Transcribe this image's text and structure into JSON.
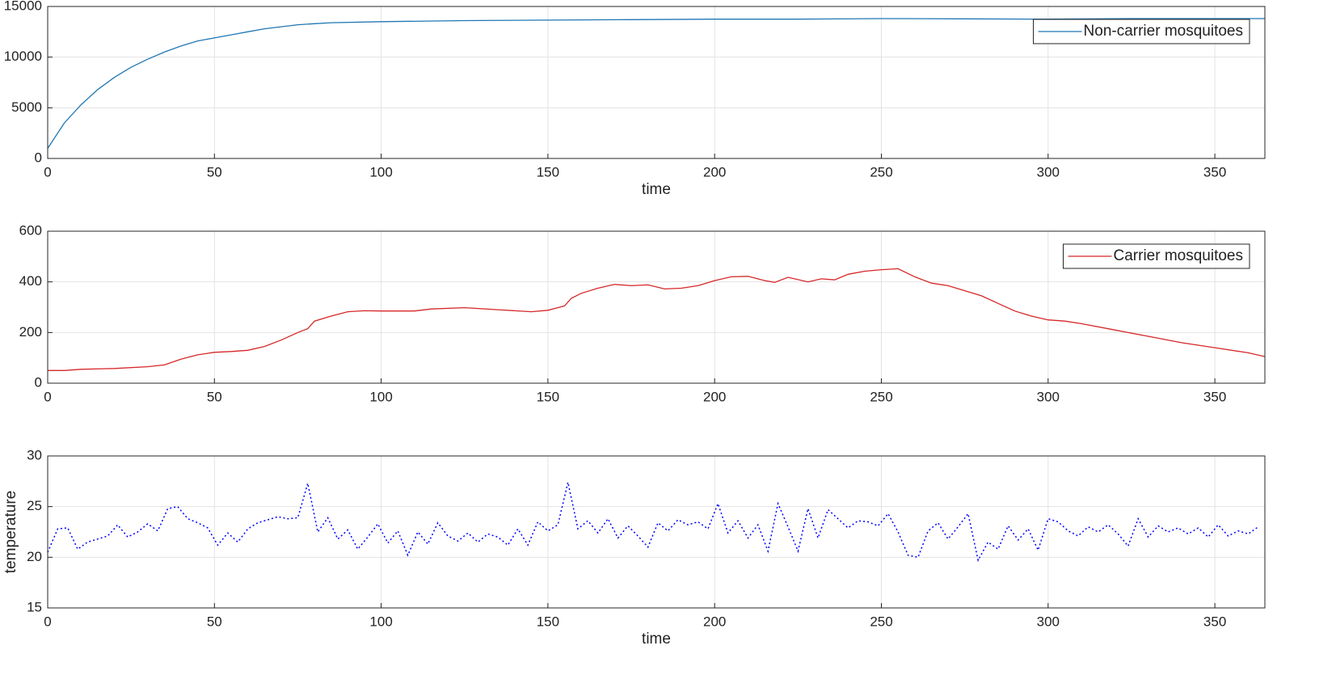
{
  "chart_data": [
    {
      "type": "line",
      "xlabel": "time",
      "x": [
        0,
        5,
        10,
        15,
        20,
        25,
        30,
        35,
        40,
        45,
        50,
        55,
        60,
        65,
        70,
        75,
        80,
        85,
        100,
        125,
        150,
        175,
        200,
        225,
        250,
        275,
        300,
        325,
        350,
        365
      ],
      "series": [
        {
          "name": "Non-carrier mosquitoes",
          "color": "#1f77b4",
          "line_style": "solid",
          "values": [
            1000,
            3500,
            5300,
            6800,
            8000,
            9000,
            9800,
            10500,
            11100,
            11600,
            11900,
            12200,
            12500,
            12800,
            13000,
            13200,
            13300,
            13400,
            13500,
            13600,
            13650,
            13700,
            13750,
            13750,
            13800,
            13780,
            13750,
            13800,
            13800,
            13800
          ]
        }
      ],
      "xlim": [
        0,
        365
      ],
      "xticks": [
        0,
        50,
        100,
        150,
        200,
        250,
        300,
        350
      ],
      "ylim": [
        0,
        15000
      ],
      "yticks": [
        0,
        5000,
        10000,
        15000
      ],
      "grid": true,
      "legend": "northeast"
    },
    {
      "type": "line",
      "x": [
        0,
        5,
        10,
        20,
        30,
        35,
        40,
        45,
        50,
        55,
        60,
        65,
        70,
        75,
        78,
        80,
        85,
        90,
        95,
        100,
        110,
        115,
        125,
        135,
        145,
        150,
        155,
        157,
        160,
        165,
        170,
        175,
        180,
        185,
        190,
        195,
        200,
        205,
        210,
        215,
        218,
        222,
        228,
        232,
        236,
        240,
        245,
        250,
        255,
        260,
        265,
        270,
        275,
        280,
        285,
        290,
        295,
        300,
        305,
        310,
        320,
        330,
        340,
        350,
        360,
        365
      ],
      "series": [
        {
          "name": "Carrier mosquitoes",
          "color": "#d62728",
          "line_style": "solid",
          "values": [
            50,
            50,
            55,
            58,
            65,
            72,
            95,
            112,
            122,
            125,
            130,
            145,
            170,
            200,
            215,
            245,
            265,
            282,
            286,
            285,
            285,
            293,
            298,
            290,
            282,
            288,
            305,
            335,
            355,
            375,
            390,
            385,
            388,
            372,
            375,
            385,
            405,
            420,
            422,
            405,
            398,
            418,
            400,
            412,
            408,
            430,
            442,
            448,
            452,
            420,
            395,
            385,
            365,
            345,
            315,
            285,
            265,
            250,
            245,
            235,
            210,
            185,
            160,
            140,
            120,
            105
          ]
        }
      ],
      "xlim": [
        0,
        365
      ],
      "xticks": [
        0,
        50,
        100,
        150,
        200,
        250,
        300,
        350
      ],
      "ylim": [
        0,
        600
      ],
      "yticks": [
        0,
        200,
        400,
        600
      ],
      "grid": true,
      "legend": "northeast"
    },
    {
      "type": "line",
      "xlabel": "time",
      "ylabel": "temperature",
      "x": [
        0,
        3,
        6,
        9,
        12,
        15,
        18,
        21,
        24,
        27,
        30,
        33,
        36,
        39,
        42,
        45,
        48,
        51,
        54,
        57,
        60,
        63,
        66,
        69,
        72,
        75,
        78,
        81,
        84,
        87,
        90,
        93,
        96,
        99,
        102,
        105,
        108,
        111,
        114,
        117,
        120,
        123,
        126,
        129,
        132,
        135,
        138,
        141,
        144,
        147,
        150,
        153,
        156,
        159,
        162,
        165,
        168,
        171,
        174,
        177,
        180,
        183,
        186,
        189,
        192,
        195,
        198,
        201,
        204,
        207,
        210,
        213,
        216,
        219,
        222,
        225,
        228,
        231,
        234,
        237,
        240,
        243,
        246,
        249,
        252,
        255,
        258,
        261,
        264,
        267,
        270,
        273,
        276,
        279,
        282,
        285,
        288,
        291,
        294,
        297,
        300,
        303,
        306,
        309,
        312,
        315,
        318,
        321,
        324,
        327,
        330,
        333,
        336,
        339,
        342,
        345,
        348,
        351,
        354,
        357,
        360,
        363
      ],
      "series": [
        {
          "color": "#0000ff",
          "line_style": "dotted",
          "values": [
            20.5,
            22.8,
            22.9,
            20.8,
            21.5,
            21.8,
            22.1,
            23.2,
            22.0,
            22.5,
            23.3,
            22.6,
            24.8,
            25.0,
            23.8,
            23.4,
            22.9,
            21.2,
            22.4,
            21.5,
            22.8,
            23.4,
            23.7,
            24.0,
            23.8,
            23.9,
            27.3,
            22.5,
            23.9,
            21.8,
            22.7,
            20.8,
            22.0,
            23.3,
            21.4,
            22.6,
            20.2,
            22.5,
            21.3,
            23.4,
            22.1,
            21.6,
            22.4,
            21.5,
            22.3,
            22.0,
            21.2,
            22.8,
            21.2,
            23.5,
            22.6,
            23.2,
            27.4,
            22.8,
            23.6,
            22.4,
            23.8,
            21.9,
            23.1,
            22.1,
            21.0,
            23.4,
            22.6,
            23.7,
            23.2,
            23.5,
            22.8,
            25.3,
            22.4,
            23.6,
            21.9,
            23.2,
            20.6,
            25.3,
            23.0,
            20.6,
            24.8,
            21.9,
            24.7,
            23.8,
            22.9,
            23.6,
            23.5,
            23.1,
            24.3,
            22.5,
            20.2,
            20.0,
            22.6,
            23.4,
            21.8,
            23.0,
            24.3,
            19.7,
            21.5,
            20.8,
            23.1,
            21.7,
            22.8,
            20.7,
            23.8,
            23.5,
            22.6,
            22.1,
            23.0,
            22.5,
            23.2,
            22.3,
            21.1,
            23.8,
            22.0,
            23.1,
            22.5,
            22.9,
            22.3,
            22.9,
            22.0,
            23.2,
            22.1,
            22.6,
            22.3,
            23.0
          ]
        }
      ],
      "xlim": [
        0,
        365
      ],
      "xticks": [
        0,
        50,
        100,
        150,
        200,
        250,
        300,
        350
      ],
      "ylim": [
        15,
        30
      ],
      "yticks": [
        15,
        20,
        25,
        30
      ],
      "grid": true
    }
  ]
}
